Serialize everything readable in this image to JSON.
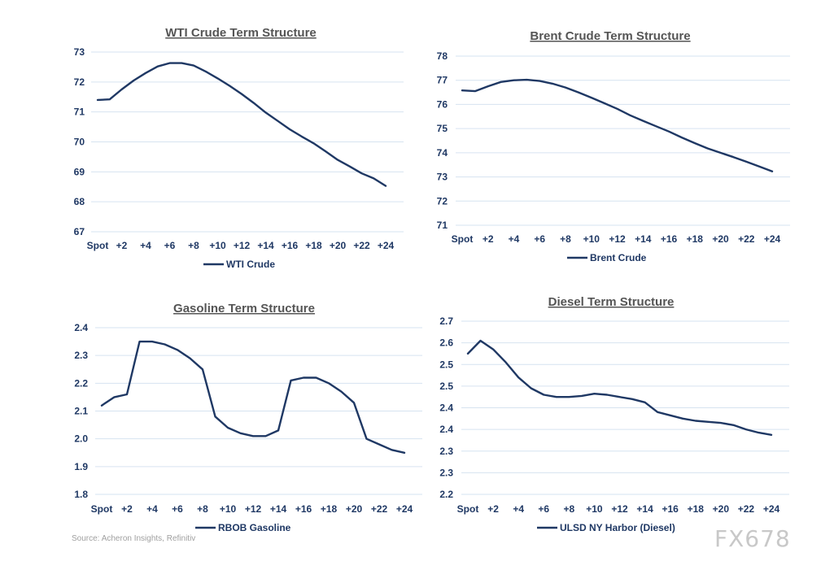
{
  "source": "Source: Acheron Insights, Refinitiv",
  "watermark": "FX678",
  "colors": {
    "line": "#1f3864",
    "grid": "#d6e3f0",
    "title": "#555555"
  },
  "chart_data": [
    {
      "type": "line",
      "title": "WTI Crude Term Structure",
      "series": [
        {
          "name": "WTI Crude",
          "values": [
            71.4,
            71.42,
            71.75,
            72.05,
            72.3,
            72.52,
            72.63,
            72.63,
            72.55,
            72.35,
            72.12,
            71.87,
            71.6,
            71.3,
            70.98,
            70.7,
            70.42,
            70.18,
            69.95,
            69.68,
            69.4,
            69.18,
            68.95,
            68.78,
            68.53
          ]
        }
      ],
      "x_tick_labels": [
        "Spot",
        "+2",
        "+4",
        "+6",
        "+8",
        "+10",
        "+12",
        "+14",
        "+16",
        "+18",
        "+20",
        "+22",
        "+24"
      ],
      "y_ticks": [
        "67",
        "68",
        "69",
        "70",
        "71",
        "72",
        "73"
      ],
      "ylim": [
        67,
        73
      ],
      "grid": true,
      "legend_position": "bottom"
    },
    {
      "type": "line",
      "title": "Brent Crude Term Structure",
      "series": [
        {
          "name": "Brent Crude",
          "values": [
            76.58,
            76.55,
            76.75,
            76.93,
            77.0,
            77.02,
            76.97,
            76.86,
            76.7,
            76.5,
            76.28,
            76.05,
            75.82,
            75.55,
            75.32,
            75.1,
            74.88,
            74.63,
            74.4,
            74.18,
            74.0,
            73.82,
            73.63,
            73.43,
            73.23
          ]
        }
      ],
      "x_tick_labels": [
        "Spot",
        "+2",
        "+4",
        "+6",
        "+8",
        "+10",
        "+12",
        "+14",
        "+16",
        "+18",
        "+20",
        "+22",
        "+24"
      ],
      "y_ticks": [
        "71",
        "72",
        "73",
        "74",
        "75",
        "76",
        "77",
        "78"
      ],
      "ylim": [
        71,
        78
      ],
      "grid": true,
      "legend_position": "bottom"
    },
    {
      "type": "line",
      "title": "Gasoline Term Structure",
      "series": [
        {
          "name": "RBOB Gasoline",
          "values": [
            2.12,
            2.15,
            2.16,
            2.35,
            2.35,
            2.34,
            2.32,
            2.29,
            2.25,
            2.08,
            2.04,
            2.02,
            2.01,
            2.01,
            2.03,
            2.21,
            2.22,
            2.22,
            2.2,
            2.17,
            2.13,
            2.0,
            1.98,
            1.96,
            1.95
          ]
        }
      ],
      "x_tick_labels": [
        "Spot",
        "+2",
        "+4",
        "+6",
        "+8",
        "+10",
        "+12",
        "+14",
        "+16",
        "+18",
        "+20",
        "+22",
        "+24"
      ],
      "y_ticks": [
        "1.8",
        "1.9",
        "2.0",
        "2.1",
        "2.2",
        "2.3",
        "2.4"
      ],
      "ylim": [
        1.8,
        2.4
      ],
      "grid": true,
      "legend_position": "bottom"
    },
    {
      "type": "line",
      "title": "Diesel Term Structure",
      "series": [
        {
          "name": "ULSD NY Harbor (Diesel)",
          "values": [
            2.6,
            2.66,
            2.62,
            2.56,
            2.49,
            2.44,
            2.41,
            2.4,
            2.4,
            2.405,
            2.415,
            2.41,
            2.4,
            2.39,
            2.375,
            2.33,
            2.315,
            2.3,
            2.29,
            2.285,
            2.28,
            2.27,
            2.25,
            2.235,
            2.225
          ]
        }
      ],
      "x_tick_labels": [
        "Spot",
        "+2",
        "+4",
        "+6",
        "+8",
        "+10",
        "+12",
        "+14",
        "+16",
        "+18",
        "+20",
        "+22",
        "+24"
      ],
      "y_ticks": [
        "2.2",
        "2.3",
        "2.3",
        "2.4",
        "2.4",
        "2.5",
        "2.5",
        "2.6",
        "2.7"
      ],
      "ylim": [
        1.95,
        2.75
      ],
      "grid": true,
      "legend_position": "bottom"
    }
  ]
}
